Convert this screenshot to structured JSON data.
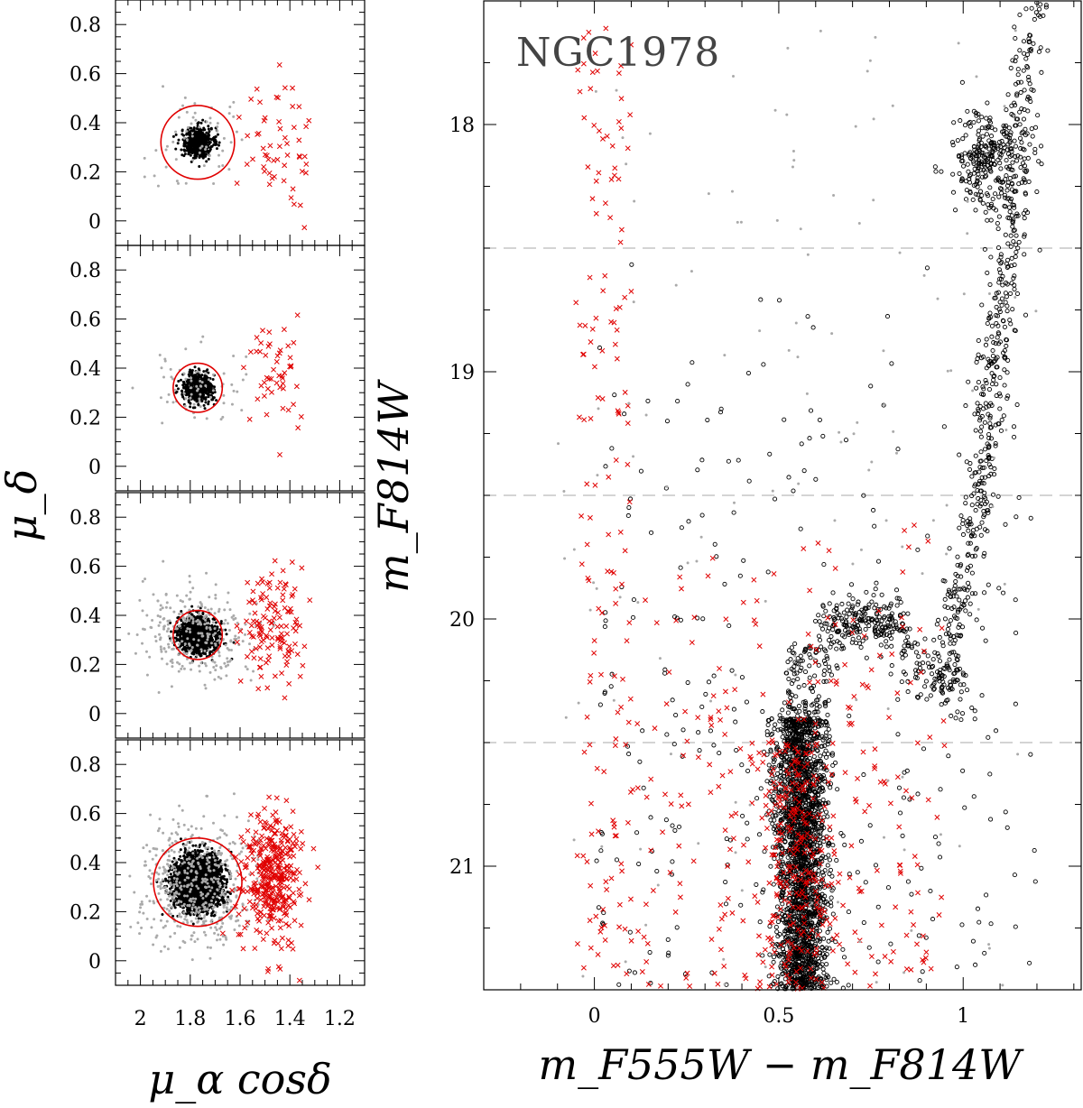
{
  "chart_data": [
    {
      "type": "scatter",
      "panel": "proper-motion-1",
      "ylabel": "μ_δ",
      "xlabel": "μ_α cosδ",
      "xlim": [
        2.1,
        1.1
      ],
      "ylim": [
        -0.1,
        0.9
      ],
      "x_ticks": [
        "2",
        "1.8",
        "1.6",
        "1.4",
        "1.2"
      ],
      "y_ticks": [
        "0",
        "0.2",
        "0.4",
        "0.6",
        "0.8"
      ],
      "selection_circle": {
        "center": [
          1.77,
          0.32
        ],
        "radius": 0.15,
        "color": "#e00000"
      },
      "series": [
        {
          "color": "#000000",
          "marker": "dot",
          "center": [
            1.77,
            0.32
          ],
          "spread": [
            0.03,
            0.03
          ],
          "count": 600
        },
        {
          "color": "#aaaaaa",
          "marker": "dot",
          "center": [
            1.77,
            0.32
          ],
          "spread": [
            0.1,
            0.09
          ],
          "count": 60
        },
        {
          "color": "#e00000",
          "marker": "x",
          "center": [
            1.45,
            0.32
          ],
          "spread": [
            0.07,
            0.14
          ],
          "count": 55
        }
      ]
    },
    {
      "type": "scatter",
      "panel": "proper-motion-2",
      "ylabel": "μ_δ",
      "xlabel": "μ_α cosδ",
      "xlim": [
        2.1,
        1.1
      ],
      "ylim": [
        -0.1,
        0.9
      ],
      "x_ticks": [
        "2",
        "1.8",
        "1.6",
        "1.4",
        "1.2"
      ],
      "y_ticks": [
        "0",
        "0.2",
        "0.4",
        "0.6",
        "0.8"
      ],
      "selection_circle": {
        "center": [
          1.77,
          0.32
        ],
        "radius": 0.1,
        "color": "#e00000"
      },
      "series": [
        {
          "color": "#000000",
          "marker": "dot",
          "center": [
            1.77,
            0.32
          ],
          "spread": [
            0.03,
            0.03
          ],
          "count": 500
        },
        {
          "color": "#aaaaaa",
          "marker": "dot",
          "center": [
            1.77,
            0.32
          ],
          "spread": [
            0.1,
            0.08
          ],
          "count": 70
        },
        {
          "color": "#e00000",
          "marker": "x",
          "center": [
            1.47,
            0.38
          ],
          "spread": [
            0.06,
            0.11
          ],
          "count": 50
        }
      ]
    },
    {
      "type": "scatter",
      "panel": "proper-motion-3",
      "ylabel": "μ_δ",
      "xlabel": "μ_α cosδ",
      "xlim": [
        2.1,
        1.1
      ],
      "ylim": [
        -0.1,
        0.9
      ],
      "x_ticks": [
        "2",
        "1.8",
        "1.6",
        "1.4",
        "1.2"
      ],
      "y_ticks": [
        "0",
        "0.2",
        "0.4",
        "0.6",
        "0.8"
      ],
      "selection_circle": {
        "center": [
          1.77,
          0.32
        ],
        "radius": 0.1,
        "color": "#e00000"
      },
      "series": [
        {
          "color": "#000000",
          "marker": "dot",
          "center": [
            1.77,
            0.32
          ],
          "spread": [
            0.035,
            0.035
          ],
          "count": 1500
        },
        {
          "color": "#aaaaaa",
          "marker": "dot",
          "center": [
            1.77,
            0.32
          ],
          "spread": [
            0.11,
            0.1
          ],
          "count": 280
        },
        {
          "color": "#e00000",
          "marker": "x",
          "center": [
            1.47,
            0.37
          ],
          "spread": [
            0.06,
            0.11
          ],
          "count": 130
        }
      ]
    },
    {
      "type": "scatter",
      "panel": "proper-motion-4",
      "ylabel": "μ_δ",
      "xlabel": "μ_α cosδ",
      "xlim": [
        2.1,
        1.1
      ],
      "ylim": [
        -0.1,
        0.9
      ],
      "x_ticks": [
        "2",
        "1.8",
        "1.6",
        "1.4",
        "1.2"
      ],
      "y_ticks": [
        "0",
        "0.2",
        "0.4",
        "0.6",
        "0.8"
      ],
      "selection_circle": {
        "center": [
          1.77,
          0.32
        ],
        "radius": 0.18,
        "color": "#e00000"
      },
      "series": [
        {
          "color": "#000000",
          "marker": "dot",
          "center": [
            1.77,
            0.32
          ],
          "spread": [
            0.045,
            0.05
          ],
          "count": 3500
        },
        {
          "color": "#aaaaaa",
          "marker": "dot",
          "center": [
            1.77,
            0.32
          ],
          "spread": [
            0.12,
            0.12
          ],
          "count": 500
        },
        {
          "color": "#e00000",
          "marker": "x",
          "center": [
            1.47,
            0.34
          ],
          "spread": [
            0.06,
            0.13
          ],
          "count": 380
        }
      ]
    },
    {
      "type": "scatter",
      "panel": "color-magnitude-diagram",
      "title": "NGC1978",
      "xlabel": "m_F555W − m_F814W",
      "ylabel": "m_F814W",
      "xlim": [
        -0.3,
        1.32
      ],
      "ylim": [
        21.5,
        17.5
      ],
      "y_inverted": true,
      "x_ticks": [
        "0",
        "0.5",
        "1"
      ],
      "y_ticks": [
        "18",
        "19",
        "20",
        "21"
      ],
      "grid": false,
      "magnitude_bin_edges": [
        18.5,
        19.5,
        20.5
      ],
      "bin_line_color": "#bbbbbb",
      "series": [
        {
          "color": "#000000",
          "marker": "open-circle",
          "feature": "main-sequence",
          "x_range": [
            0.52,
            0.6
          ],
          "y_range": [
            20.4,
            21.5
          ],
          "count": 2200
        },
        {
          "color": "#000000",
          "marker": "open-circle",
          "feature": "subgiant-branch",
          "x_range": [
            0.5,
            1.0
          ],
          "y_range": [
            19.85,
            20.45
          ],
          "count": 450
        },
        {
          "color": "#000000",
          "marker": "open-circle",
          "feature": "red-giant-branch",
          "x_range": [
            0.97,
            1.2
          ],
          "y_range": [
            17.5,
            20.3
          ],
          "count": 550
        },
        {
          "color": "#000000",
          "marker": "open-circle",
          "feature": "red-clump",
          "center": [
            1.06,
            18.15
          ],
          "count": 260
        },
        {
          "color": "#000000",
          "marker": "open-circle",
          "feature": "field",
          "x_range": [
            0.0,
            1.2
          ],
          "y_range": [
            18.5,
            21.5
          ],
          "count": 300
        },
        {
          "color": "#e00000",
          "marker": "x",
          "feature": "rejected-field",
          "x_range": [
            -0.1,
            1.0
          ],
          "y_range": [
            17.6,
            21.5
          ],
          "count": 650
        },
        {
          "color": "#aaaaaa",
          "marker": "dot",
          "feature": "unselected",
          "x_range": [
            -0.1,
            1.2
          ],
          "y_range": [
            17.6,
            21.5
          ],
          "count": 150
        }
      ]
    }
  ]
}
